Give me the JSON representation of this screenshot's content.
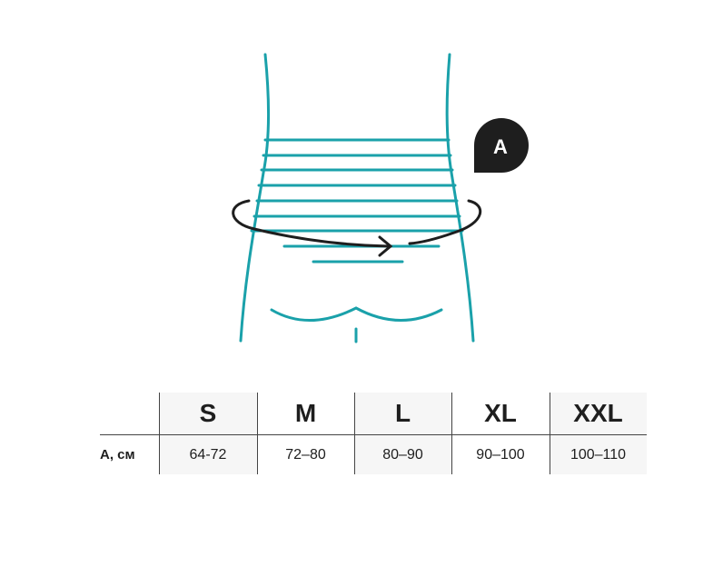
{
  "diagram": {
    "badge_label": "A",
    "colors": {
      "body_outline": "#1aa1aa",
      "arrow": "#1e1e1e",
      "badge": "#1e1e1e"
    },
    "icons": [
      "torso-outline",
      "measurement-arrow",
      "badge-marker"
    ]
  },
  "size_table": {
    "row_label": "A, см",
    "columns": [
      {
        "size": "S",
        "range": "64-72"
      },
      {
        "size": "M",
        "range": "72–80"
      },
      {
        "size": "L",
        "range": "80–90"
      },
      {
        "size": "XL",
        "range": "90–100"
      },
      {
        "size": "XXL",
        "range": "100–110"
      }
    ]
  }
}
